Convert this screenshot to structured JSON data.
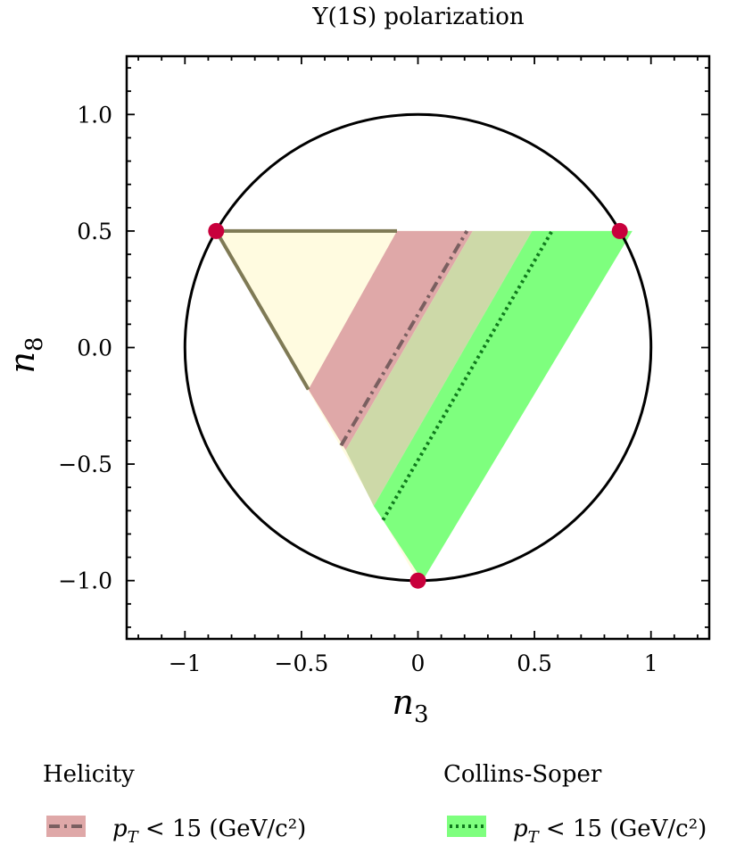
{
  "chart_data": {
    "type": "area",
    "title": "Υ(1S) polarization",
    "xlabel": "n",
    "xlabel_sub": "3",
    "ylabel": "n",
    "ylabel_sub": "8",
    "xlim": [
      -1.25,
      1.25
    ],
    "ylim": [
      -1.25,
      1.25
    ],
    "x_ticks": [
      -1,
      -0.5,
      0,
      0.5,
      1
    ],
    "x_tick_labels": [
      "−1",
      "−0.5",
      "0",
      "0.5",
      "1"
    ],
    "y_ticks": [
      -1.0,
      -0.5,
      0.0,
      0.5,
      1.0
    ],
    "y_tick_labels": [
      "−1.0",
      "−0.5",
      "0.0",
      "0.5",
      "1.0"
    ],
    "grid": false,
    "unit_circle": {
      "center": [
        0,
        0
      ],
      "radius": 1
    },
    "triangle": [
      [
        -0.866,
        0.5
      ],
      [
        0.866,
        0.5
      ],
      [
        0,
        -1
      ]
    ],
    "vertex_points": [
      [
        -0.866,
        0.5
      ],
      [
        0.866,
        0.5
      ],
      [
        0,
        -1
      ]
    ],
    "regions": [
      {
        "role": "triangle-fill",
        "color": "#fffbe0",
        "polygon": [
          [
            -0.866,
            0.5
          ],
          [
            0.866,
            0.5
          ],
          [
            0,
            -1
          ]
        ]
      },
      {
        "role": "helicity-band",
        "color": "#dfa8a8",
        "polygon": [
          [
            -0.09,
            0.5
          ],
          [
            0.235,
            0.5
          ],
          [
            -0.31,
            -0.44
          ],
          [
            -0.47,
            -0.18
          ]
        ]
      },
      {
        "role": "overlap-band",
        "color": "#cdd9a8",
        "polygon": [
          [
            0.235,
            0.5
          ],
          [
            0.49,
            0.5
          ],
          [
            -0.19,
            -0.68
          ],
          [
            -0.31,
            -0.44
          ]
        ]
      },
      {
        "role": "collins-soper-band",
        "color": "#7eff7e",
        "polygon": [
          [
            0.49,
            0.5
          ],
          [
            0.92,
            0.5
          ],
          [
            0.02,
            -1.0
          ],
          [
            -0.19,
            -0.68
          ]
        ]
      }
    ],
    "boundary_lines": [
      {
        "role": "triangle-edge-top",
        "color": "#7f7a55",
        "points": [
          [
            -0.866,
            0.5
          ],
          [
            -0.09,
            0.5
          ]
        ]
      },
      {
        "role": "triangle-edge-left",
        "color": "#7f7a55",
        "points": [
          [
            -0.866,
            0.5
          ],
          [
            -0.47,
            -0.18
          ]
        ]
      }
    ],
    "series": [
      {
        "name": "Helicity",
        "label": "p",
        "label_sub": "T",
        "label_rest": " < 15 (GeV/c²)",
        "color": "#7a5f60",
        "linestyle": "dashdot",
        "band_color": "#dfa8a8",
        "x": [
          -0.33,
          0.21
        ],
        "y": [
          -0.42,
          0.5
        ]
      },
      {
        "name": "Collins-Soper",
        "label": "p",
        "label_sub": "T",
        "label_rest": " < 15 (GeV/c²)",
        "color": "#0f7a1c",
        "linestyle": "dotted",
        "band_color": "#7eff7e",
        "x": [
          -0.15,
          0.575
        ],
        "y": [
          -0.74,
          0.5
        ]
      }
    ],
    "legend_placement": "bottom"
  }
}
